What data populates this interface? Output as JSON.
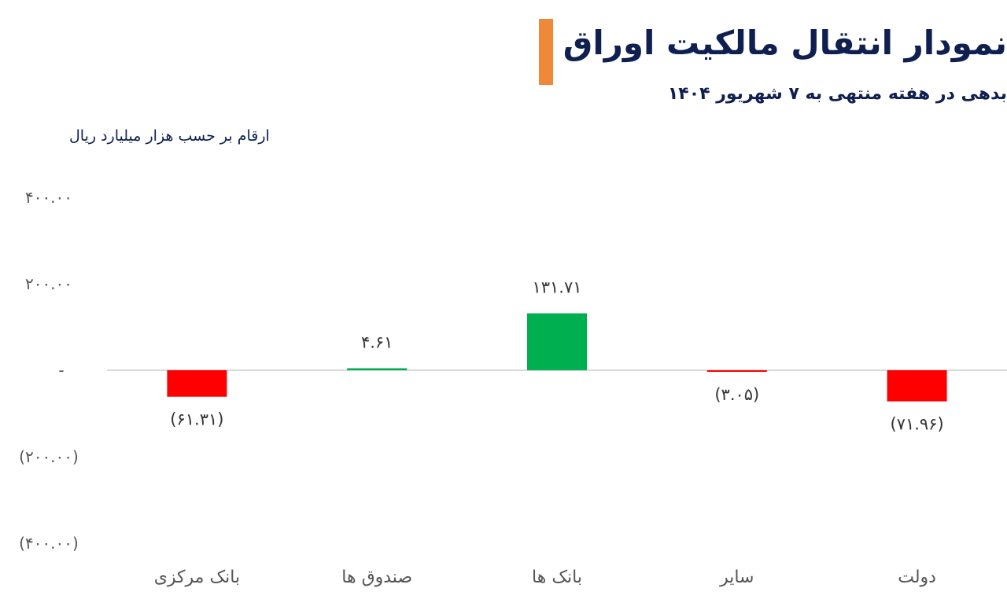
{
  "header": {
    "title": "نمودار انتقال مالکیت اوراق",
    "subtitle": "بدهی در هفته منتهی به ۷ شهریور ۱۴۰۴",
    "units": "ارقام بر حسب هزار میلیارد ریال"
  },
  "colors": {
    "accent": "#f0883a",
    "positive": "#00b050",
    "negative": "#ff0000",
    "baseline": "#d9d9d9"
  },
  "chart_data": {
    "type": "bar",
    "title": "نمودار انتقال مالکیت اوراق",
    "subtitle": "بدهی در هفته منتهی به ۷ شهریور ۱۴۰۴",
    "ylabel": "ارقام بر حسب هزار میلیارد ریال",
    "categories": [
      "بانک مرکزی",
      "صندوق ها",
      "بانک ها",
      "سایر",
      "دولت"
    ],
    "values": [
      -61.31,
      4.61,
      131.71,
      -3.05,
      -71.96
    ],
    "data_labels": [
      "(۶۱.۳۱)",
      "۴.۶۱",
      "۱۳۱.۷۱",
      "(۳.۰۵)",
      "(۷۱.۹۶)"
    ],
    "ylim": [
      -400,
      400
    ],
    "y_ticks": [
      400,
      200,
      0,
      -200,
      -400
    ],
    "y_tick_labels": [
      "۴۰۰.۰۰",
      "۲۰۰.۰۰",
      "-",
      "(۲۰۰.۰۰)",
      "(۴۰۰.۰۰)"
    ],
    "grid": false,
    "legend": "none"
  }
}
